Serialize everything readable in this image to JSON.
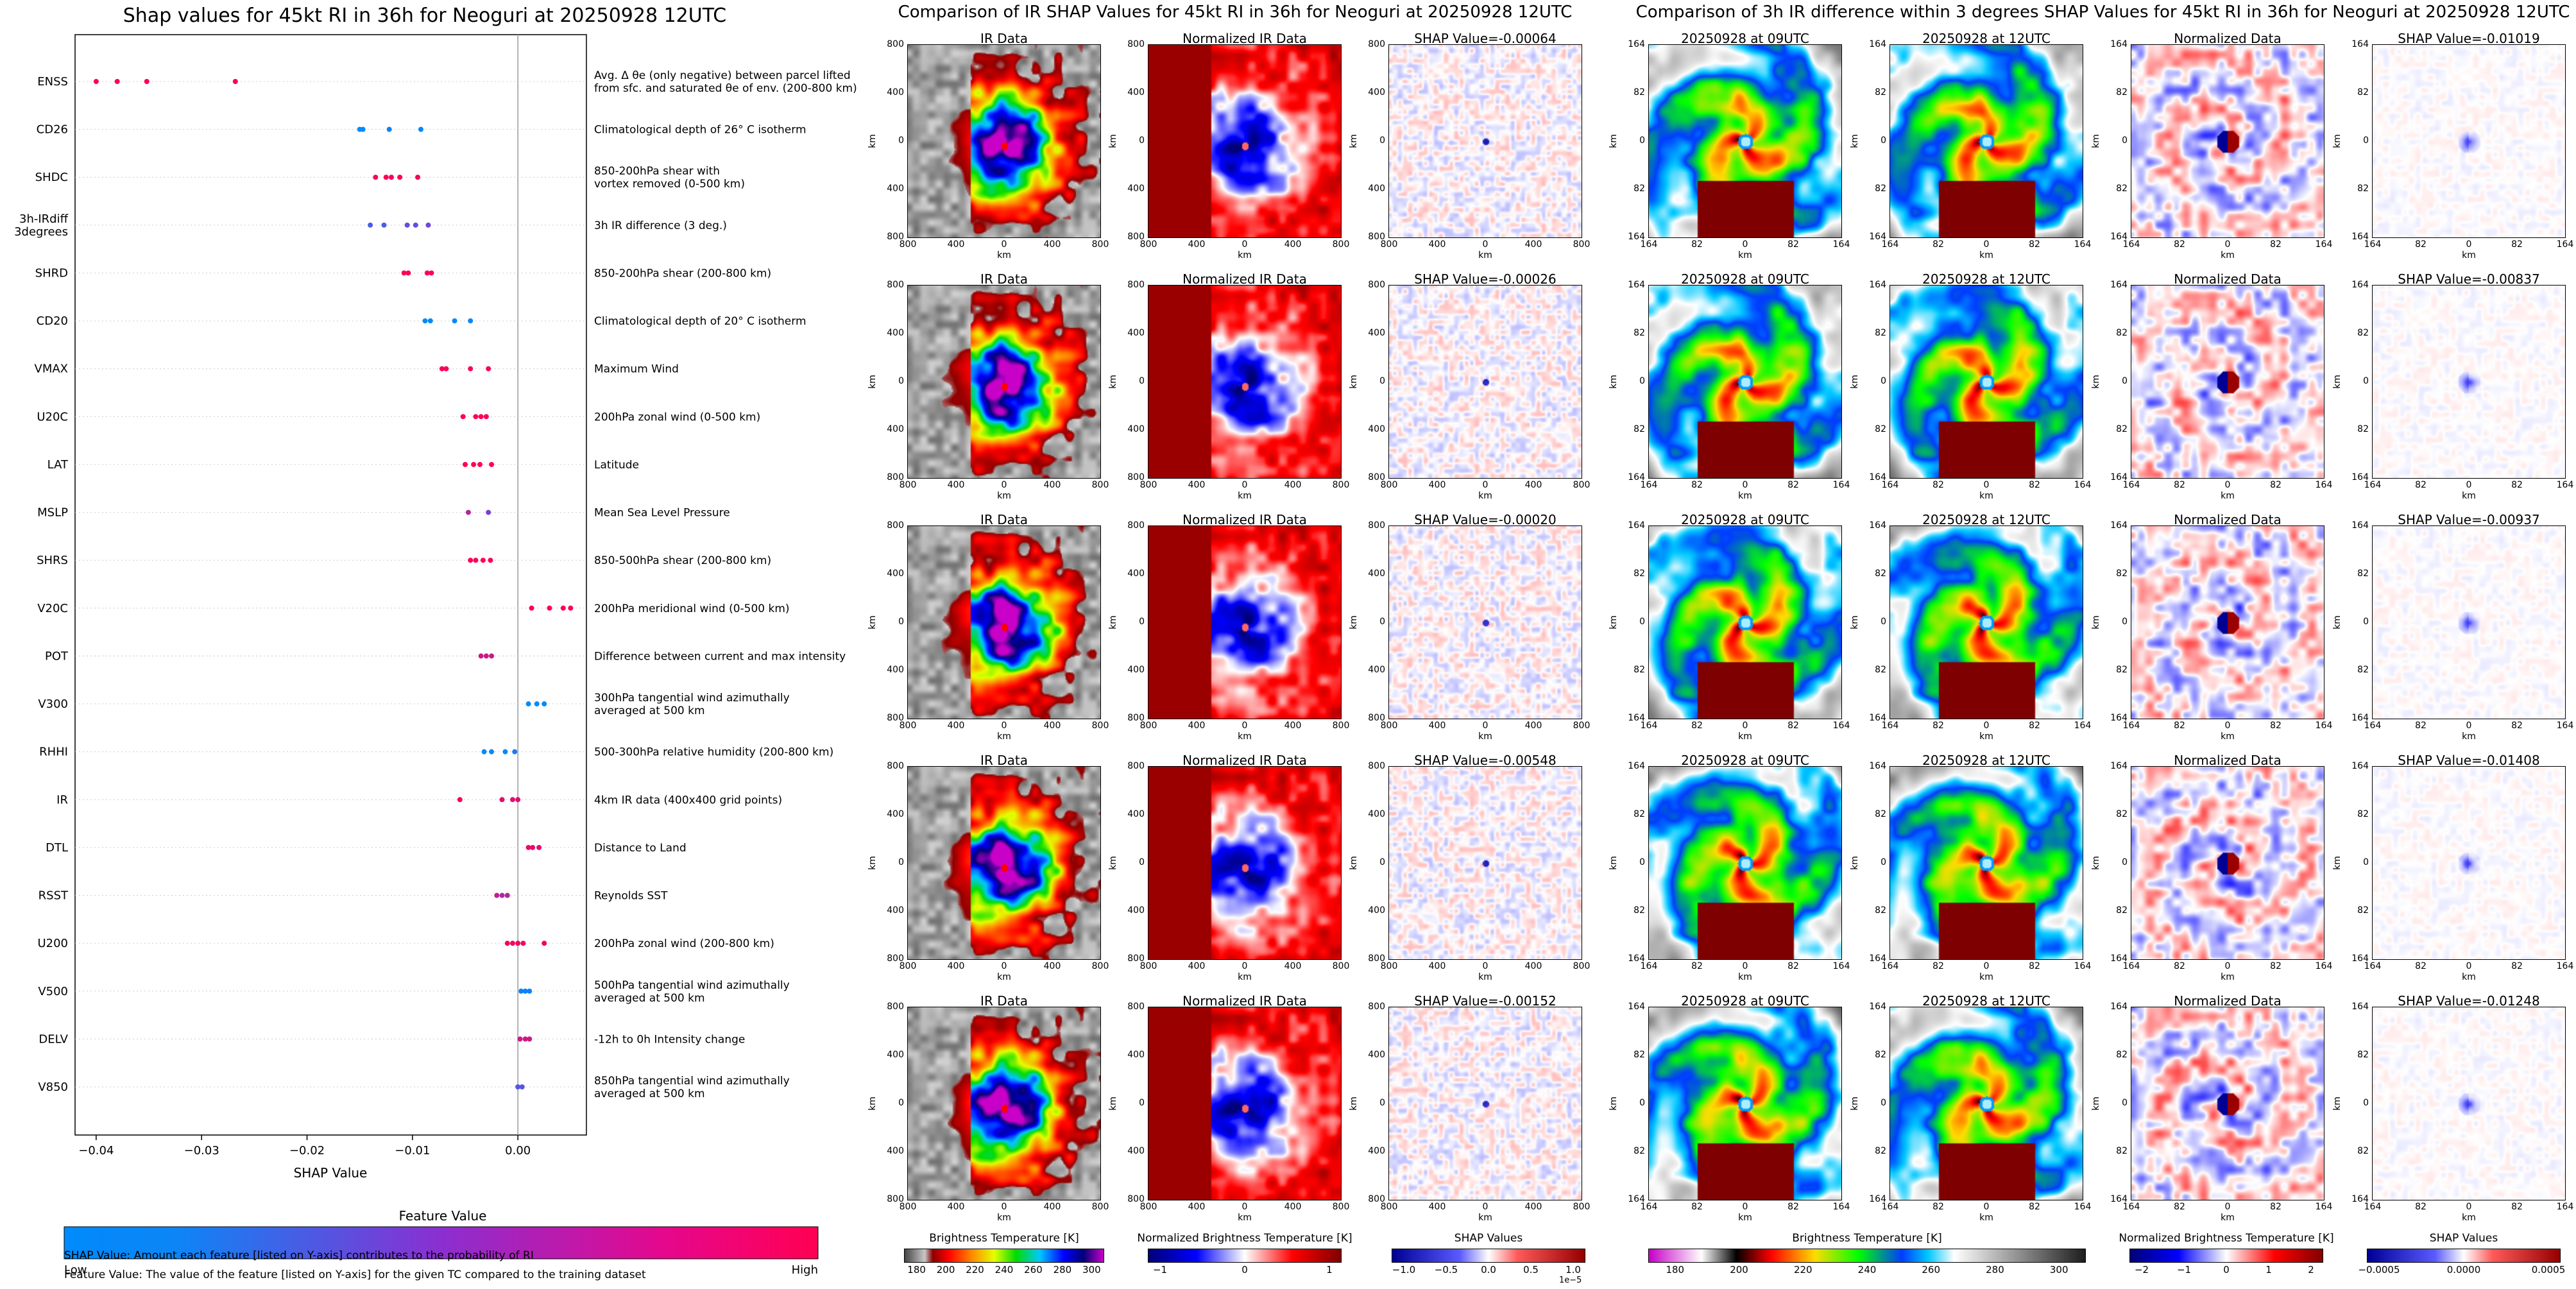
{
  "colors": {
    "low": "#008afb",
    "mid": "#7b3fd6",
    "high": "#ff0052",
    "ir_cold": "#cc00cc",
    "ir_warm": "#ffffff"
  },
  "shap_summary": {
    "title": "Shap values for 45kt RI in 36h for Neoguri at 20250928 12UTC",
    "xlabel": "SHAP Value",
    "xticks": [
      "−0.04",
      "−0.03",
      "−0.02",
      "−0.01",
      "0.00"
    ],
    "colorbar_title": "Feature Value",
    "colorbar_low": "Low",
    "colorbar_high": "High",
    "note_1": "SHAP Value: Amount each feature [listed on Y-axis] contributes to the probability of RI",
    "note_2": "Feature Value: The value of the feature [listed on Y-axis] for the given TC compared to the training dataset"
  },
  "chart_data": [
    {
      "type": "scatter",
      "title": "Shap values for 45kt RI in 36h for Neoguri at 20250928 12UTC",
      "xlabel": "SHAP Value",
      "ylabel": "",
      "xlim": [
        -0.042,
        0.0065
      ],
      "xticks": [
        -0.04,
        -0.03,
        -0.02,
        -0.01,
        0.0
      ],
      "grid": "horizontal dotted",
      "features": [
        {
          "code": "ENSS",
          "desc": "Avg. Δ θe (only negative) between parcel lifted\nfrom sfc. and saturated θe of env. (200-800 km)",
          "points": [
            [
              -0.04,
              1.0
            ],
            [
              -0.038,
              1.0
            ],
            [
              -0.0352,
              1.0
            ],
            [
              -0.0268,
              1.0
            ]
          ]
        },
        {
          "code": "CD26",
          "desc": "Climatological depth of 26° C isotherm",
          "points": [
            [
              -0.015,
              0.0
            ],
            [
              -0.0147,
              0.0
            ],
            [
              -0.0122,
              0.05
            ],
            [
              -0.0092,
              0.0
            ]
          ]
        },
        {
          "code": "SHDC",
          "desc": "850-200hPa shear with\nvortex removed (0-500 km)",
          "points": [
            [
              -0.0135,
              0.95
            ],
            [
              -0.0125,
              1.0
            ],
            [
              -0.012,
              0.95
            ],
            [
              -0.0112,
              1.0
            ],
            [
              -0.0095,
              0.95
            ]
          ]
        },
        {
          "code": "3h-IRdiff\n3degrees",
          "desc": "3h IR difference (3 deg.)",
          "points": [
            [
              -0.014,
              0.3
            ],
            [
              -0.0127,
              0.3
            ],
            [
              -0.0105,
              0.4
            ],
            [
              -0.0097,
              0.4
            ],
            [
              -0.0085,
              0.45
            ]
          ]
        },
        {
          "code": "SHRD",
          "desc": "850-200hPa shear (200-800 km)",
          "points": [
            [
              -0.0108,
              1.0
            ],
            [
              -0.0104,
              1.0
            ],
            [
              -0.0086,
              1.0
            ],
            [
              -0.0082,
              1.0
            ]
          ]
        },
        {
          "code": "CD20",
          "desc": "Climatological depth of 20° C isotherm",
          "points": [
            [
              -0.0088,
              0.0
            ],
            [
              -0.0083,
              0.0
            ],
            [
              -0.006,
              0.0
            ],
            [
              -0.0045,
              0.0
            ]
          ]
        },
        {
          "code": "VMAX",
          "desc": "Maximum Wind",
          "points": [
            [
              -0.0072,
              1.0
            ],
            [
              -0.0068,
              1.0
            ],
            [
              -0.0045,
              1.0
            ],
            [
              -0.0028,
              1.0
            ]
          ]
        },
        {
          "code": "U20C",
          "desc": "200hPa zonal wind (0-500 km)",
          "points": [
            [
              -0.0052,
              1.0
            ],
            [
              -0.004,
              1.0
            ],
            [
              -0.0035,
              1.0
            ],
            [
              -0.003,
              1.0
            ]
          ]
        },
        {
          "code": "LAT",
          "desc": "Latitude",
          "points": [
            [
              -0.005,
              1.0
            ],
            [
              -0.0042,
              1.0
            ],
            [
              -0.0036,
              1.0
            ],
            [
              -0.0025,
              1.0
            ]
          ]
        },
        {
          "code": "MSLP",
          "desc": "Mean Sea Level Pressure",
          "points": [
            [
              -0.0047,
              0.7
            ],
            [
              -0.0028,
              0.5
            ]
          ]
        },
        {
          "code": "SHRS",
          "desc": "850-500hPa shear (200-800 km)",
          "points": [
            [
              -0.0045,
              1.0
            ],
            [
              -0.004,
              1.0
            ],
            [
              -0.0033,
              1.0
            ],
            [
              -0.0026,
              1.0
            ]
          ]
        },
        {
          "code": "V20C",
          "desc": "200hPa meridional wind (0-500 km)",
          "points": [
            [
              0.0013,
              1.0
            ],
            [
              0.003,
              1.0
            ],
            [
              0.0043,
              1.0
            ],
            [
              0.005,
              1.0
            ]
          ]
        },
        {
          "code": "POT",
          "desc": "Difference between current and max intensity",
          "points": [
            [
              -0.0035,
              0.8
            ],
            [
              -0.003,
              0.8
            ],
            [
              -0.0025,
              0.8
            ]
          ]
        },
        {
          "code": "V300",
          "desc": "300hPa tangential wind azimuthally\naveraged at 500 km",
          "points": [
            [
              0.001,
              0.0
            ],
            [
              0.0018,
              0.0
            ],
            [
              0.0025,
              0.0
            ]
          ]
        },
        {
          "code": "RHHI",
          "desc": "500-300hPa relative humidity (200-800 km)",
          "points": [
            [
              -0.0032,
              0.0
            ],
            [
              -0.0025,
              0.0
            ],
            [
              -0.0012,
              0.0
            ],
            [
              -0.0003,
              0.1
            ]
          ]
        },
        {
          "code": "IR",
          "desc": "4km IR data (400x400 grid points)",
          "points": [
            [
              -0.0055,
              0.95
            ],
            [
              -0.0015,
              0.9
            ],
            [
              -0.0005,
              0.85
            ],
            [
              0.0,
              0.9
            ]
          ]
        },
        {
          "code": "DTL",
          "desc": "Distance to Land",
          "points": [
            [
              0.001,
              0.9
            ],
            [
              0.0014,
              0.9
            ],
            [
              0.002,
              0.9
            ]
          ]
        },
        {
          "code": "RSST",
          "desc": "Reynolds SST",
          "points": [
            [
              -0.002,
              0.75
            ],
            [
              -0.0015,
              0.7
            ],
            [
              -0.001,
              0.7
            ]
          ]
        },
        {
          "code": "U200",
          "desc": "200hPa zonal wind (200-800 km)",
          "points": [
            [
              -0.001,
              0.95
            ],
            [
              -0.0005,
              0.95
            ],
            [
              0.0,
              0.95
            ],
            [
              0.0005,
              0.95
            ],
            [
              0.0025,
              0.95
            ]
          ]
        },
        {
          "code": "V500",
          "desc": "500hPa tangential wind azimuthally\naveraged at 500 km",
          "points": [
            [
              0.0003,
              0.05
            ],
            [
              0.0007,
              0.05
            ],
            [
              0.0011,
              0.05
            ]
          ]
        },
        {
          "code": "DELV",
          "desc": "-12h to 0h Intensity change",
          "points": [
            [
              0.0002,
              0.8
            ],
            [
              0.0007,
              0.8
            ],
            [
              0.0011,
              0.8
            ]
          ]
        },
        {
          "code": "V850",
          "desc": "850hPa tangential wind azimuthally\naveraged at 500 km",
          "points": [
            [
              0.0,
              0.35
            ],
            [
              0.0004,
              0.35
            ]
          ]
        }
      ]
    },
    {
      "type": "heatmap",
      "title": "Comparison of IR SHAP Values for 45kt RI in 36h for Neoguri at 20250928 12UTC",
      "columns": [
        "IR Data",
        "Normalized IR Data",
        "SHAP Value"
      ],
      "shap_values": [
        "-0.00064",
        "-0.00026",
        "-0.00020",
        "-0.00548",
        "-0.00152"
      ],
      "xlabel": "km",
      "ylabel": "km",
      "ticks": [
        "800",
        "400",
        "0",
        "400",
        "800"
      ],
      "colorbars": [
        {
          "label": "Brightness Temperature [K]",
          "ticks": [
            "180",
            "200",
            "220",
            "240",
            "260",
            "280",
            "300"
          ]
        },
        {
          "label": "Normalized Brightness Temperature [K]",
          "ticks": [
            "−1",
            "0",
            "1"
          ]
        },
        {
          "label": "SHAP Values",
          "ticks": [
            "−1.0",
            "−0.5",
            "0.0",
            "0.5",
            "1.0"
          ],
          "offset": "1e−5"
        }
      ]
    },
    {
      "type": "heatmap",
      "title": "Comparison of 3h IR difference within 3 degrees SHAP Values for 45kt RI in 36h for Neoguri at 20250928 12UTC",
      "columns": [
        "20250928 at 09UTC",
        "20250928 at 12UTC",
        "Normalized Data",
        "SHAP Value"
      ],
      "shap_values": [
        "-0.01019",
        "-0.00837",
        "-0.00937",
        "-0.01408",
        "-0.01248"
      ],
      "xlabel": "km",
      "ylabel": "km",
      "ticks": [
        "164",
        "82",
        "0",
        "82",
        "164"
      ],
      "colorbars": [
        {
          "label": "Brightness Temperature [K]",
          "ticks": [
            "180",
            "200",
            "220",
            "240",
            "260",
            "280",
            "300"
          ]
        },
        {
          "label": "Normalized Brightness Temperature [K]",
          "ticks": [
            "−2",
            "−1",
            "0",
            "1",
            "2"
          ]
        },
        {
          "label": "SHAP Values",
          "ticks": [
            "−0.0005",
            "0.0000",
            "0.0005"
          ]
        }
      ]
    }
  ]
}
